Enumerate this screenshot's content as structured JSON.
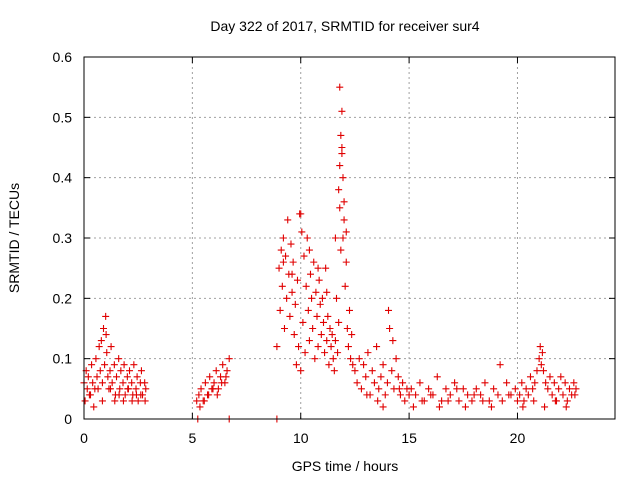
{
  "chart_data": {
    "type": "scatter",
    "title": "Day 322 of 2017, SRMTID for receiver sur4",
    "xlabel": "GPS time / hours",
    "ylabel": "SRMTID / TECUs",
    "xlim": [
      0,
      24.5
    ],
    "ylim": [
      0,
      0.6
    ],
    "xticks": [
      0,
      5,
      10,
      15,
      20
    ],
    "xtick_labels": [
      "0",
      "5",
      "10",
      "15",
      "20"
    ],
    "yticks": [
      0,
      0.1,
      0.2,
      0.3,
      0.4,
      0.5,
      0.6
    ],
    "ytick_labels": [
      "0",
      "0.1",
      "0.2",
      "0.3",
      "0.4",
      "0.5",
      "0.6"
    ],
    "grid": true,
    "marker": "plus",
    "series": [
      {
        "name": "sur4 SRMTID",
        "color": "#e00000",
        "x": [
          0.0,
          0.1,
          0.15,
          0.2,
          0.3,
          0.35,
          0.4,
          0.5,
          0.55,
          0.6,
          0.7,
          0.75,
          0.8,
          0.85,
          0.9,
          0.95,
          1.0,
          1.05,
          1.1,
          1.15,
          1.2,
          1.25,
          1.3,
          1.4,
          1.45,
          1.5,
          1.6,
          1.65,
          1.7,
          1.8,
          1.85,
          1.9,
          2.0,
          2.05,
          2.1,
          2.2,
          2.25,
          2.3,
          2.4,
          2.45,
          2.5,
          2.6,
          2.65,
          2.7,
          2.8,
          2.85,
          0.05,
          0.25,
          0.45,
          0.65,
          0.85,
          1.02,
          1.22,
          1.42,
          1.62,
          1.82,
          2.02,
          2.22,
          2.42,
          2.62,
          2.82,
          5.2,
          5.3,
          5.4,
          5.5,
          5.6,
          5.7,
          5.8,
          5.9,
          6.0,
          6.1,
          6.2,
          6.3,
          6.4,
          6.5,
          6.6,
          6.7,
          5.35,
          5.55,
          5.75,
          5.95,
          6.15,
          6.35,
          6.55,
          5.25,
          6.7,
          8.9,
          8.9,
          9.0,
          9.05,
          9.1,
          9.15,
          9.2,
          9.25,
          9.3,
          9.35,
          9.4,
          9.45,
          9.5,
          9.55,
          9.6,
          9.65,
          9.7,
          9.75,
          9.8,
          9.85,
          9.9,
          9.95,
          10.0,
          10.05,
          10.1,
          10.15,
          10.2,
          10.25,
          10.3,
          10.35,
          10.4,
          10.45,
          10.5,
          10.55,
          10.6,
          10.65,
          10.7,
          10.75,
          10.8,
          10.85,
          10.9,
          10.95,
          11.0,
          11.05,
          11.1,
          11.15,
          11.2,
          11.25,
          11.3,
          11.35,
          11.4,
          11.45,
          11.5,
          11.55,
          11.6,
          11.65,
          11.7,
          11.75,
          11.8,
          11.85,
          11.9,
          11.95,
          12.0,
          12.05,
          12.1,
          12.15,
          12.2,
          12.25,
          12.3,
          12.35,
          12.4,
          9.2,
          9.6,
          10.0,
          10.4,
          10.8,
          11.2,
          11.6,
          11.75,
          11.8,
          11.85,
          11.9,
          11.95,
          12.0,
          11.8,
          11.9,
          12.1,
          12.5,
          12.6,
          12.7,
          12.8,
          12.9,
          13.0,
          13.1,
          13.2,
          13.3,
          13.4,
          13.5,
          13.6,
          13.7,
          13.8,
          13.9,
          14.0,
          14.1,
          14.2,
          14.3,
          14.4,
          14.5,
          14.6,
          14.7,
          14.8,
          14.9,
          15.0,
          13.05,
          13.55,
          14.05,
          14.55,
          13.8,
          14.25,
          15.1,
          15.3,
          15.5,
          15.7,
          15.9,
          16.1,
          16.3,
          16.5,
          16.7,
          16.9,
          17.1,
          17.3,
          17.5,
          17.7,
          17.9,
          18.1,
          18.3,
          18.5,
          18.7,
          18.9,
          19.1,
          19.3,
          19.5,
          19.7,
          19.9,
          15.2,
          15.6,
          16.0,
          16.4,
          16.8,
          17.2,
          17.6,
          18.0,
          18.4,
          18.8,
          19.2,
          19.6,
          20.0,
          20.1,
          20.2,
          20.3,
          20.4,
          20.5,
          20.6,
          20.7,
          20.8,
          20.9,
          21.0,
          21.05,
          21.1,
          21.15,
          21.2,
          21.3,
          21.4,
          21.5,
          21.6,
          21.7,
          21.8,
          21.9,
          22.0,
          22.1,
          22.2,
          22.3,
          22.4,
          22.5,
          22.6,
          22.7,
          20.25,
          20.75,
          21.25,
          21.75,
          22.25,
          22.65
        ],
        "y": [
          0.06,
          0.08,
          0.05,
          0.07,
          0.04,
          0.09,
          0.06,
          0.05,
          0.1,
          0.07,
          0.12,
          0.08,
          0.13,
          0.06,
          0.15,
          0.09,
          0.17,
          0.11,
          0.07,
          0.05,
          0.08,
          0.12,
          0.06,
          0.09,
          0.04,
          0.07,
          0.1,
          0.05,
          0.08,
          0.06,
          0.09,
          0.04,
          0.07,
          0.05,
          0.08,
          0.06,
          0.04,
          0.09,
          0.05,
          0.07,
          0.03,
          0.06,
          0.08,
          0.04,
          0.06,
          0.05,
          0.03,
          0.04,
          0.02,
          0.05,
          0.03,
          0.14,
          0.05,
          0.03,
          0.04,
          0.03,
          0.05,
          0.03,
          0.04,
          0.04,
          0.03,
          0.03,
          0.04,
          0.05,
          0.03,
          0.06,
          0.04,
          0.07,
          0.05,
          0.06,
          0.08,
          0.05,
          0.07,
          0.09,
          0.06,
          0.08,
          0.1,
          0.02,
          0.03,
          0.04,
          0.05,
          0.04,
          0.06,
          0.07,
          0.0,
          0.0,
          0.0,
          0.12,
          0.25,
          0.18,
          0.28,
          0.22,
          0.3,
          0.15,
          0.27,
          0.2,
          0.33,
          0.24,
          0.17,
          0.29,
          0.21,
          0.26,
          0.14,
          0.19,
          0.09,
          0.23,
          0.12,
          0.34,
          0.08,
          0.31,
          0.16,
          0.27,
          0.11,
          0.22,
          0.3,
          0.18,
          0.13,
          0.24,
          0.2,
          0.15,
          0.26,
          0.1,
          0.21,
          0.17,
          0.12,
          0.23,
          0.19,
          0.14,
          0.2,
          0.16,
          0.11,
          0.25,
          0.13,
          0.17,
          0.09,
          0.15,
          0.12,
          0.14,
          0.1,
          0.08,
          0.13,
          0.2,
          0.11,
          0.16,
          0.35,
          0.28,
          0.45,
          0.3,
          0.33,
          0.22,
          0.26,
          0.15,
          0.12,
          0.18,
          0.1,
          0.14,
          0.09,
          0.26,
          0.24,
          0.34,
          0.28,
          0.25,
          0.21,
          0.3,
          0.38,
          0.42,
          0.47,
          0.51,
          0.4,
          0.36,
          0.55,
          0.44,
          0.31,
          0.08,
          0.06,
          0.1,
          0.05,
          0.09,
          0.07,
          0.11,
          0.04,
          0.08,
          0.06,
          0.12,
          0.05,
          0.07,
          0.09,
          0.04,
          0.06,
          0.15,
          0.08,
          0.05,
          0.1,
          0.07,
          0.04,
          0.06,
          0.03,
          0.05,
          0.04,
          0.04,
          0.03,
          0.18,
          0.05,
          0.02,
          0.13,
          0.05,
          0.04,
          0.06,
          0.03,
          0.05,
          0.04,
          0.07,
          0.03,
          0.05,
          0.04,
          0.06,
          0.03,
          0.05,
          0.04,
          0.03,
          0.05,
          0.04,
          0.06,
          0.03,
          0.05,
          0.04,
          0.03,
          0.06,
          0.04,
          0.05,
          0.02,
          0.03,
          0.04,
          0.02,
          0.03,
          0.05,
          0.02,
          0.04,
          0.03,
          0.02,
          0.09,
          0.04,
          0.03,
          0.04,
          0.06,
          0.03,
          0.05,
          0.04,
          0.07,
          0.05,
          0.06,
          0.08,
          0.1,
          0.12,
          0.09,
          0.11,
          0.08,
          0.06,
          0.05,
          0.07,
          0.04,
          0.06,
          0.03,
          0.05,
          0.07,
          0.04,
          0.06,
          0.03,
          0.05,
          0.04,
          0.06,
          0.05,
          0.02,
          0.03,
          0.02,
          0.03,
          0.02,
          0.04
        ]
      }
    ]
  }
}
